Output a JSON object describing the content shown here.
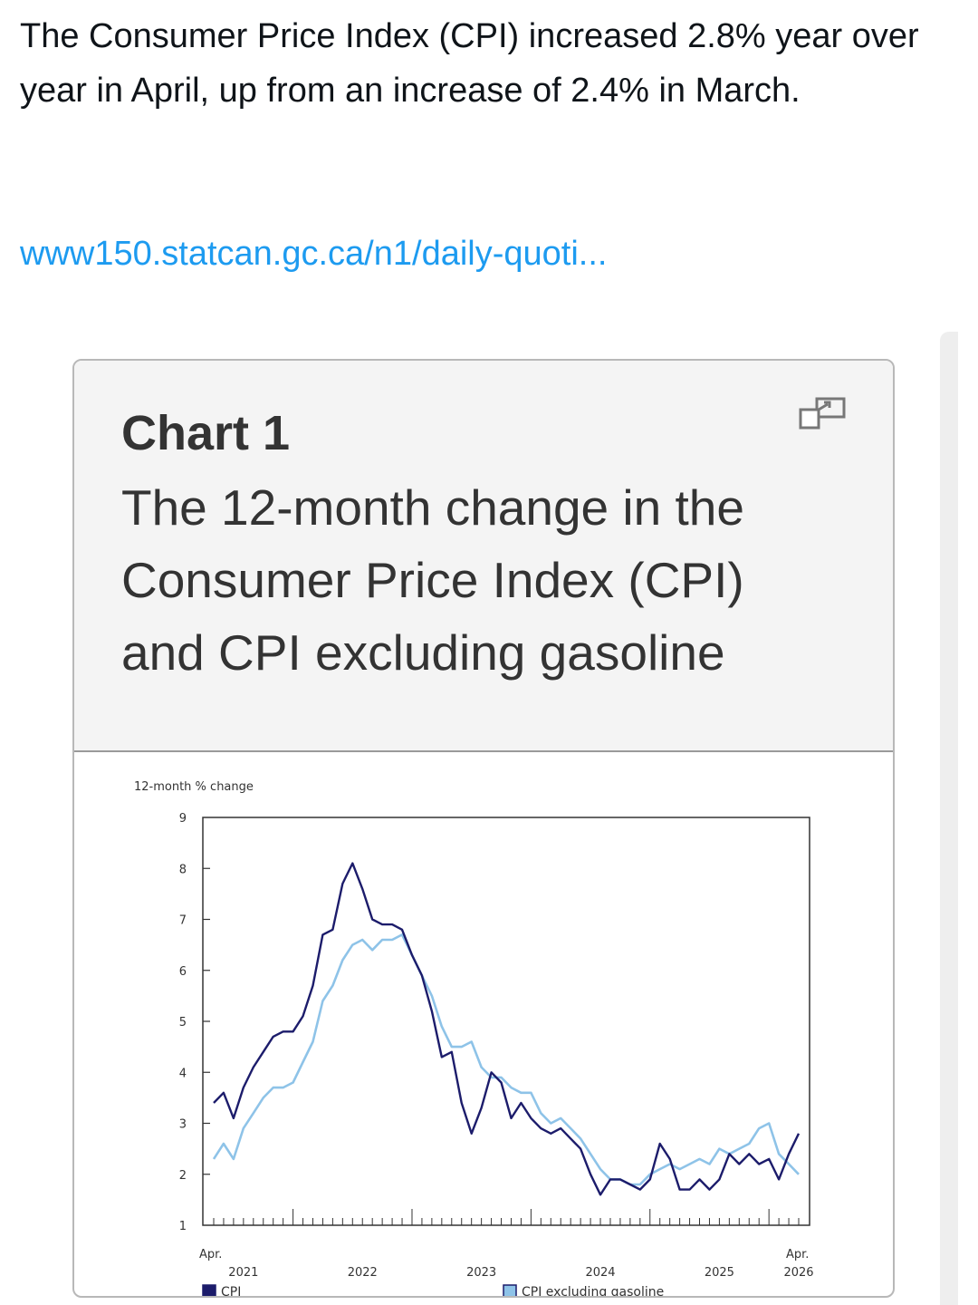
{
  "post": {
    "text": "The Consumer Price Index (CPI) increased 2.8% year over year in April, up from an increase of 2.4% in March.",
    "link": "www150.statcan.gc.ca/n1/daily-quoti..."
  },
  "card": {
    "chart_number": "Chart 1",
    "title": "The 12-month change in the Consumer Price Index (CPI) and CPI excluding gasoline",
    "expand_icon": "expand-window-icon"
  },
  "chart_data": {
    "type": "line",
    "ylabel": "12-month % change",
    "ylim": [
      1,
      9
    ],
    "yticks": [
      "9",
      "8",
      "7",
      "6",
      "5",
      "4",
      "3",
      "2",
      "1"
    ],
    "x_start_label": "Apr.",
    "x_end_label": "Apr.",
    "year_labels": [
      "2021",
      "2022",
      "2023",
      "2024",
      "2025",
      "2026"
    ],
    "series": [
      {
        "name": "CPI",
        "color": "#1c1c6b",
        "values": [
          3.4,
          3.6,
          3.1,
          3.7,
          4.1,
          4.4,
          4.7,
          4.8,
          4.8,
          5.1,
          5.7,
          6.7,
          6.8,
          7.7,
          8.1,
          7.6,
          7.0,
          6.9,
          6.9,
          6.8,
          6.3,
          5.9,
          5.2,
          4.3,
          4.4,
          3.4,
          2.8,
          3.3,
          4.0,
          3.8,
          3.1,
          3.4,
          3.1,
          2.9,
          2.8,
          2.9,
          2.7,
          2.5,
          2.0,
          1.6,
          1.9,
          1.9,
          1.8,
          1.7,
          1.9,
          2.6,
          2.3,
          1.7,
          1.7,
          1.9,
          1.7,
          1.9,
          2.4,
          2.2,
          2.4,
          2.2,
          2.3,
          1.9,
          2.4,
          2.8
        ]
      },
      {
        "name": "CPI excluding gasoline",
        "color": "#8ec3e8",
        "values": [
          2.3,
          2.6,
          2.3,
          2.9,
          3.2,
          3.5,
          3.7,
          3.7,
          3.8,
          4.2,
          4.6,
          5.4,
          5.7,
          6.2,
          6.5,
          6.6,
          6.4,
          6.6,
          6.6,
          6.7,
          6.3,
          5.9,
          5.5,
          4.9,
          4.5,
          4.5,
          4.6,
          4.1,
          3.9,
          3.9,
          3.7,
          3.6,
          3.6,
          3.2,
          3.0,
          3.1,
          2.9,
          2.7,
          2.4,
          2.1,
          1.9,
          1.9,
          1.8,
          1.8,
          2.0,
          2.1,
          2.2,
          2.1,
          2.2,
          2.3,
          2.2,
          2.5,
          2.4,
          2.5,
          2.6,
          2.9,
          3.0,
          2.4,
          2.2,
          2.0
        ]
      }
    ],
    "grid": false,
    "legend": "bottom"
  }
}
